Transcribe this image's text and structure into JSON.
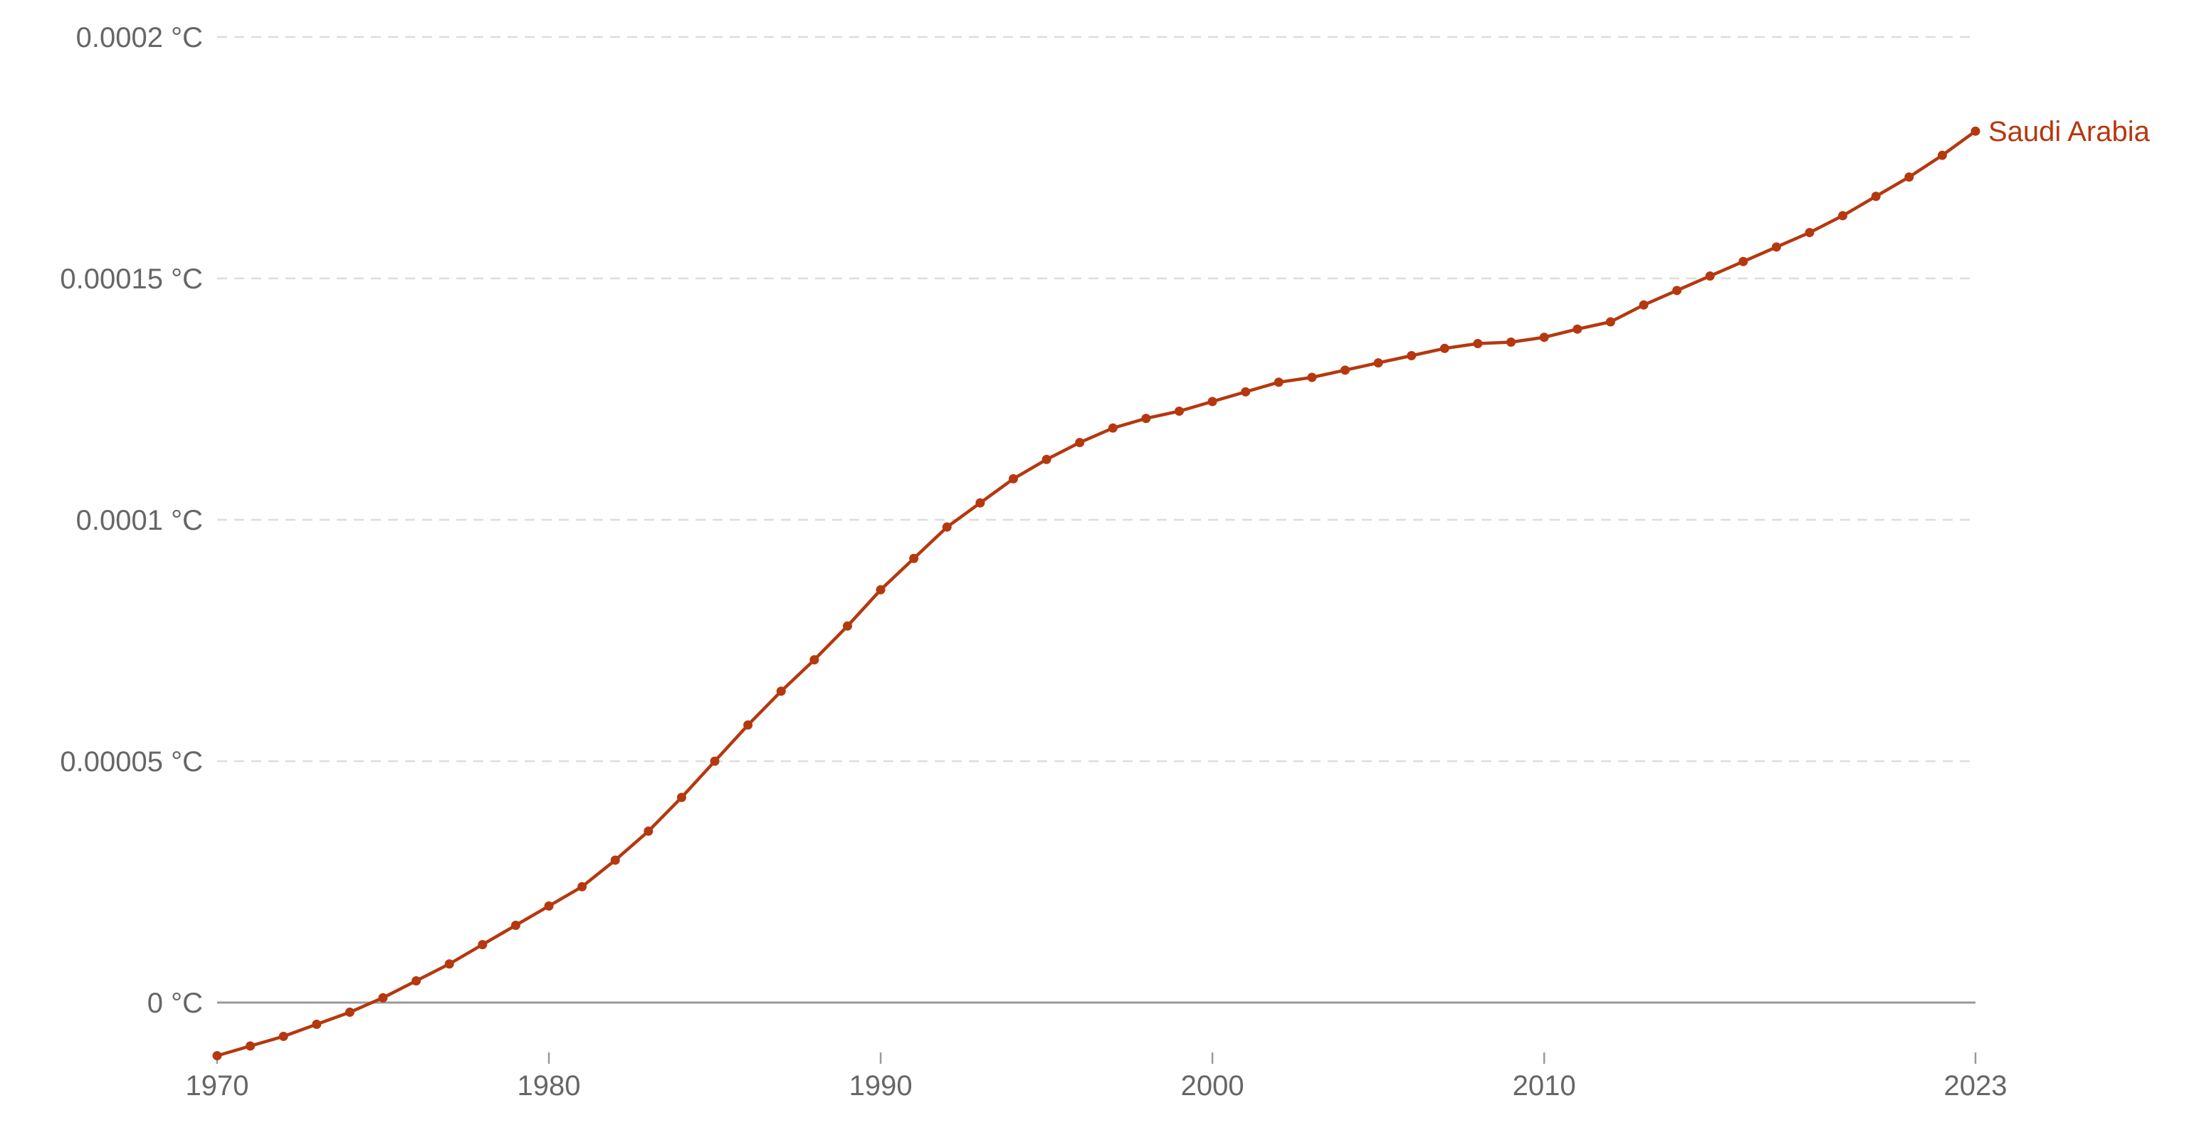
{
  "chart_data": {
    "type": "line",
    "title": "",
    "xlabel": "",
    "ylabel": "",
    "y_unit": "°C",
    "xlim": [
      1970,
      2023
    ],
    "ylim": [
      -1e-05,
      0.0002
    ],
    "y_ticks": [
      0,
      5e-05,
      0.0001,
      0.00015,
      0.0002
    ],
    "y_tick_labels": [
      "0 °C",
      "0.00005 °C",
      "0.0001 °C",
      "0.00015 °C",
      "0.0002 °C"
    ],
    "x_ticks": [
      1970,
      1980,
      1990,
      2000,
      2010,
      2023
    ],
    "x_tick_labels": [
      "1970",
      "1980",
      "1990",
      "2000",
      "2010",
      "2023"
    ],
    "grid": "horizontal dashed",
    "series": [
      {
        "name": "Saudi Arabia",
        "color": "#b5380f",
        "x": [
          1970,
          1971,
          1972,
          1973,
          1974,
          1975,
          1976,
          1977,
          1978,
          1979,
          1980,
          1981,
          1982,
          1983,
          1984,
          1985,
          1986,
          1987,
          1988,
          1989,
          1990,
          1991,
          1992,
          1993,
          1994,
          1995,
          1996,
          1997,
          1998,
          1999,
          2000,
          2001,
          2002,
          2003,
          2004,
          2005,
          2006,
          2007,
          2008,
          2009,
          2010,
          2011,
          2012,
          2013,
          2014,
          2015,
          2016,
          2017,
          2018,
          2019,
          2020,
          2021,
          2022,
          2023
        ],
        "values": [
          -1.1e-05,
          -9e-06,
          -7e-06,
          -4.5e-06,
          -2e-06,
          1e-06,
          4.5e-06,
          8e-06,
          1.2e-05,
          1.6e-05,
          2e-05,
          2.4e-05,
          2.95e-05,
          3.55e-05,
          4.25e-05,
          5e-05,
          5.75e-05,
          6.45e-05,
          7.1e-05,
          7.8e-05,
          8.55e-05,
          9.2e-05,
          9.85e-05,
          0.0001035,
          0.0001085,
          0.0001125,
          0.000116,
          0.000119,
          0.000121,
          0.0001225,
          0.0001245,
          0.0001265,
          0.0001285,
          0.0001295,
          0.000131,
          0.0001325,
          0.000134,
          0.0001355,
          0.0001365,
          0.0001368,
          0.0001378,
          0.0001395,
          0.000141,
          0.0001445,
          0.0001475,
          0.0001505,
          0.0001535,
          0.0001565,
          0.0001595,
          0.000163,
          0.000167,
          0.000171,
          0.0001755,
          0.0001805
        ]
      }
    ]
  }
}
